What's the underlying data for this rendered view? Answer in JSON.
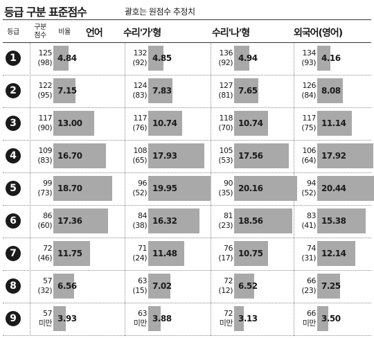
{
  "title": "등급 구분 표준점수",
  "subtitle": "괄호는 원점수 추정치",
  "headers": {
    "grade": "등급",
    "score": [
      "구분",
      "점수"
    ],
    "rate": "비율"
  },
  "colors": {
    "bar": "#a9a9a9",
    "badge": "#1a1a1a"
  },
  "chart_data": {
    "type": "bar",
    "subjects": [
      "언어",
      "수리'가'형",
      "수리'나'형",
      "외국어(영어)"
    ],
    "grades": [
      "1",
      "2",
      "3",
      "4",
      "5",
      "6",
      "7",
      "8",
      "9"
    ],
    "xlim": [
      0,
      21
    ],
    "series": [
      {
        "name": "언어",
        "standard_score": [
          "125",
          "122",
          "117",
          "109",
          "99",
          "86",
          "72",
          "57",
          "57"
        ],
        "raw_score": [
          "(98)",
          "(95)",
          "(90)",
          "(83)",
          "(73)",
          "(60)",
          "(46)",
          "(32)",
          "미만"
        ],
        "percent": [
          4.84,
          7.15,
          13.0,
          16.7,
          18.7,
          17.36,
          11.75,
          6.56,
          3.93
        ]
      },
      {
        "name": "수리'가'형",
        "standard_score": [
          "132",
          "124",
          "117",
          "108",
          "96",
          "84",
          "71",
          "63",
          "63"
        ],
        "raw_score": [
          "(92)",
          "(83)",
          "(76)",
          "(65)",
          "(52)",
          "(38)",
          "(24)",
          "(15)",
          "미만"
        ],
        "percent": [
          4.85,
          7.83,
          10.74,
          17.93,
          19.95,
          16.32,
          11.48,
          7.02,
          3.88
        ]
      },
      {
        "name": "수리'나'형",
        "standard_score": [
          "136",
          "127",
          "118",
          "105",
          "90",
          "81",
          "76",
          "72",
          "72"
        ],
        "raw_score": [
          "(92)",
          "(81)",
          "(70)",
          "(53)",
          "(35)",
          "(23)",
          "(17)",
          "(12)",
          "미만"
        ],
        "percent": [
          4.94,
          7.65,
          10.74,
          17.56,
          20.16,
          18.56,
          10.75,
          6.52,
          3.13
        ]
      },
      {
        "name": "외국어(영어)",
        "standard_score": [
          "134",
          "126",
          "117",
          "106",
          "94",
          "83",
          "74",
          "66",
          "66"
        ],
        "raw_score": [
          "(93)",
          "(84)",
          "(75)",
          "(64)",
          "(52)",
          "(41)",
          "(31)",
          "(23)",
          "미만"
        ],
        "percent": [
          4.16,
          8.08,
          11.14,
          17.92,
          20.44,
          15.38,
          12.14,
          7.25,
          3.5
        ]
      }
    ]
  }
}
